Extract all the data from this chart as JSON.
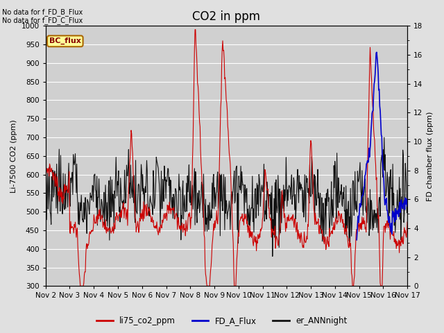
{
  "title": "CO2 in ppm",
  "ylabel_left": "Li-7500 CO2 (ppm)",
  "ylabel_right": "FD chamber flux (ppm)",
  "ylim_left": [
    300,
    1000
  ],
  "ylim_right": [
    0,
    18
  ],
  "yticks_left": [
    300,
    350,
    400,
    450,
    500,
    550,
    600,
    650,
    700,
    750,
    800,
    850,
    900,
    950,
    1000
  ],
  "yticks_right": [
    0,
    2,
    4,
    6,
    8,
    10,
    12,
    14,
    16,
    18
  ],
  "xtick_labels": [
    "Nov 2",
    "Nov 3",
    "Nov 4",
    "Nov 5",
    "Nov 6",
    "Nov 7",
    "Nov 8",
    "Nov 9",
    "Nov 10",
    "Nov 11",
    "Nov 12",
    "Nov 13",
    "Nov 14",
    "Nov 15",
    "Nov 16",
    "Nov 17"
  ],
  "no_data_text1": "No data for f_FD_B_Flux",
  "no_data_text2": "No data for f_FD_C_Flux",
  "bc_flux_label": "BC_flux",
  "legend_labels": [
    "li75_co2_ppm",
    "FD_A_Flux",
    "er_ANNnight"
  ],
  "legend_colors": [
    "#cc0000",
    "#0000cc",
    "#111111"
  ],
  "background_color": "#e0e0e0",
  "plot_bg_color": "#d0d0d0",
  "grid_color": "#ffffff",
  "title_fontsize": 12,
  "label_fontsize": 8,
  "tick_fontsize": 7.5
}
